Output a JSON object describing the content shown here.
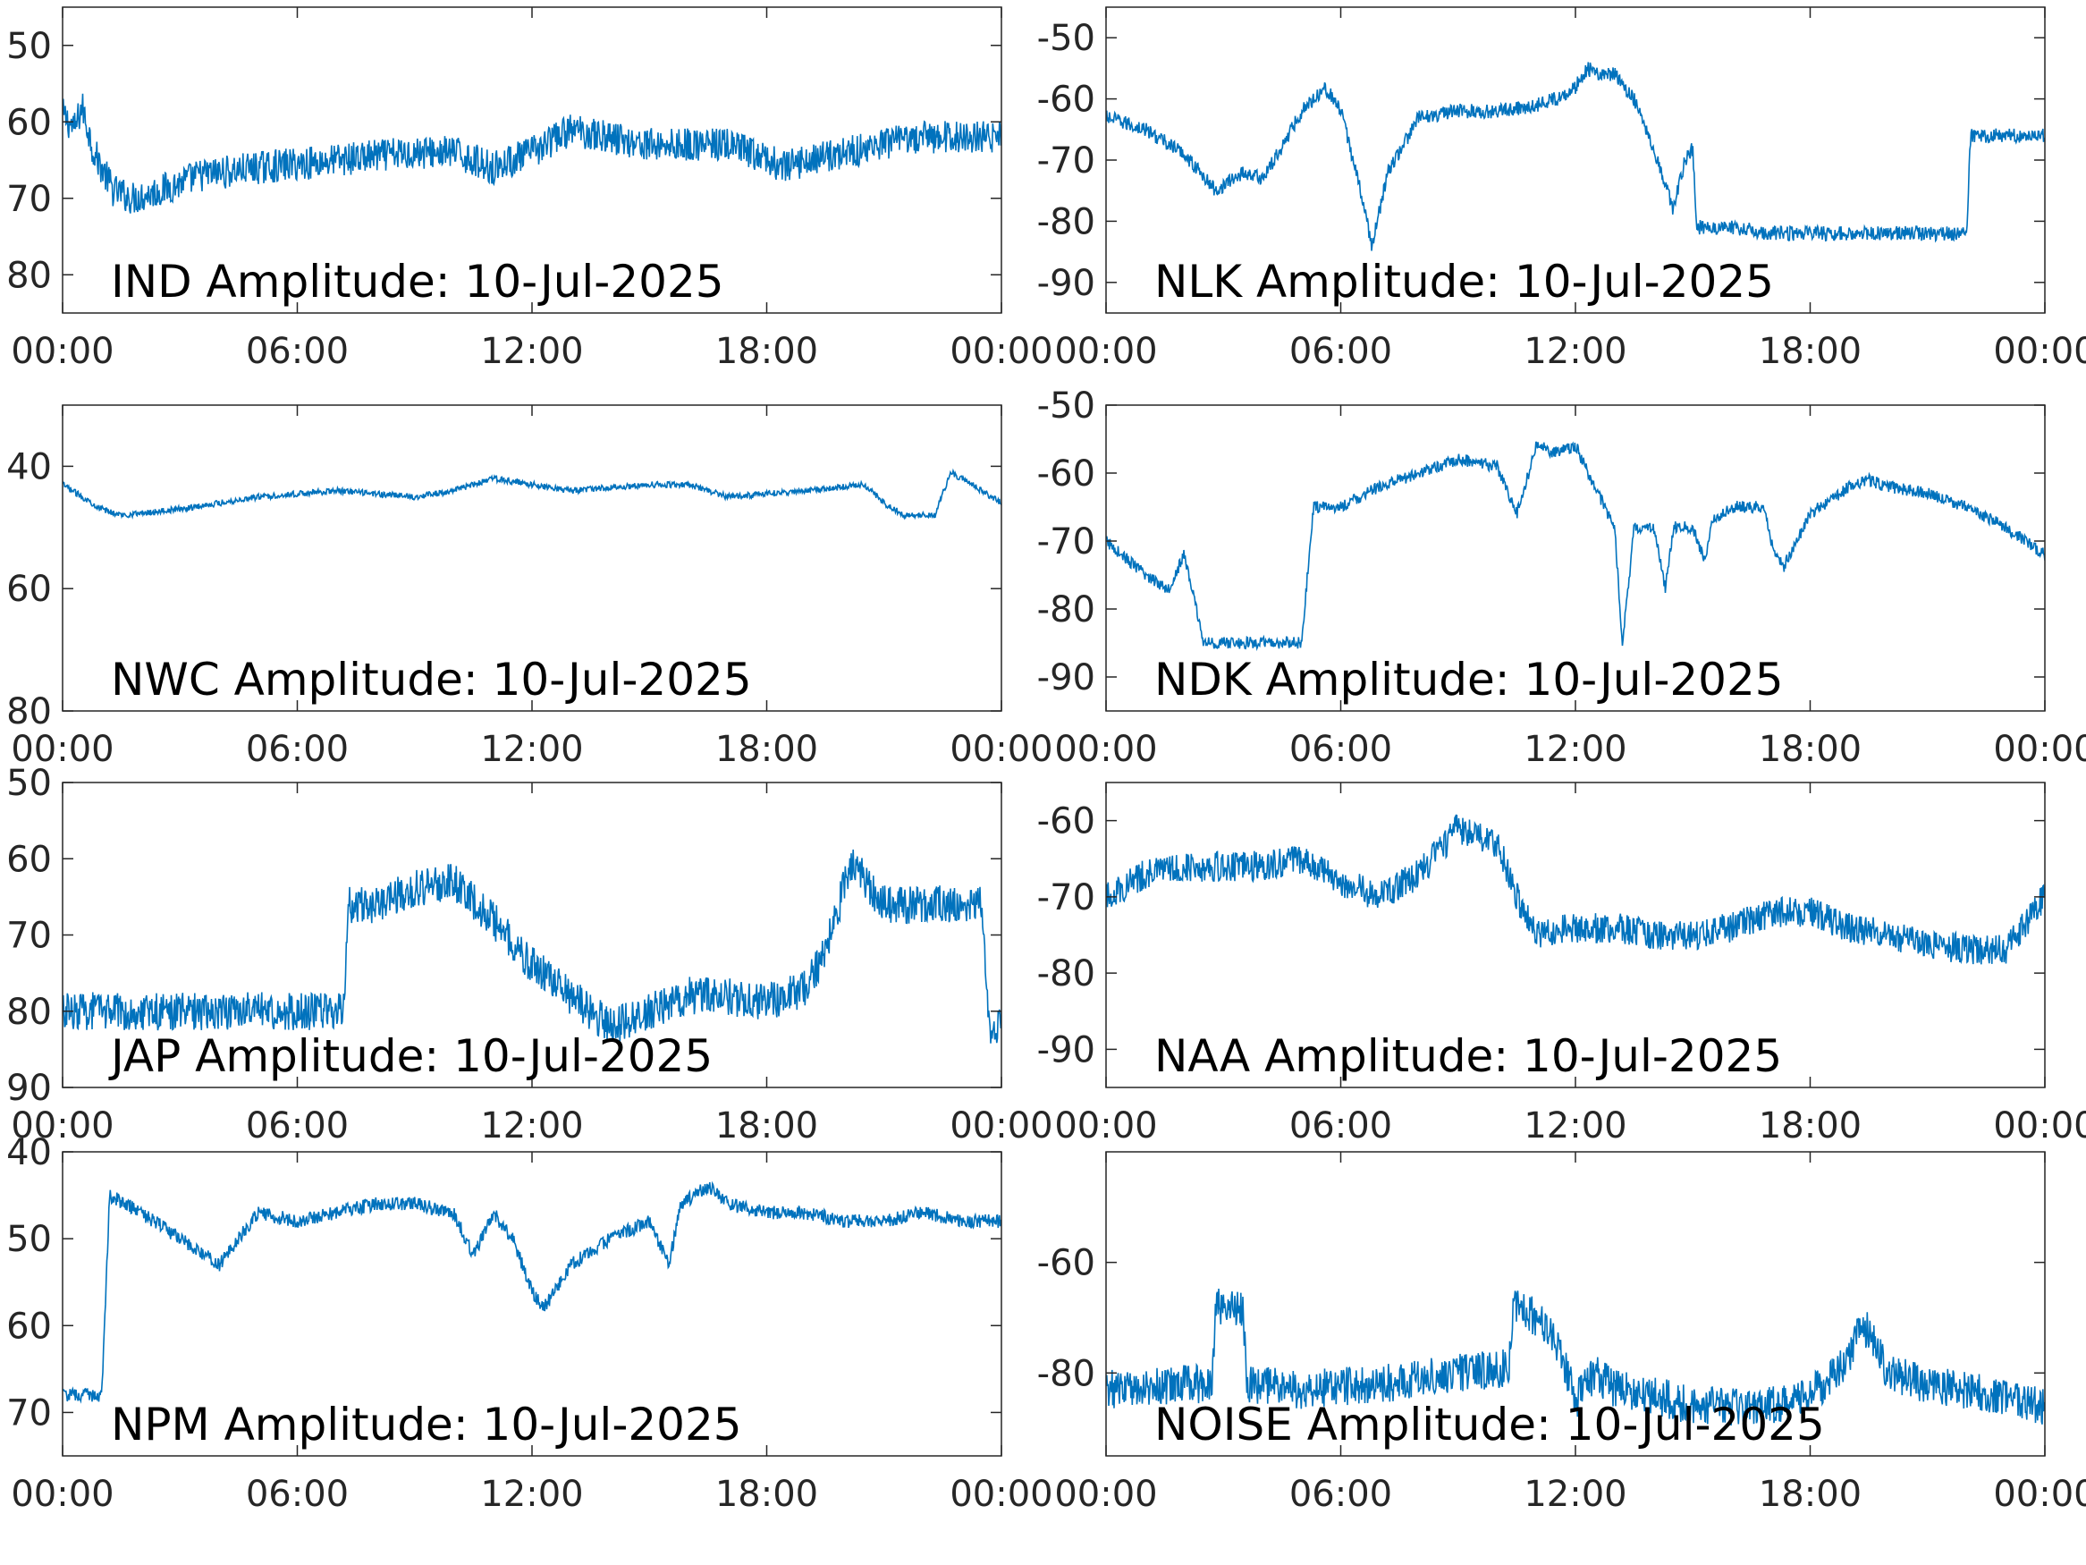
{
  "colors": {
    "trace": "#0072BD",
    "axes": "#262626",
    "background": "#ffffff"
  },
  "chart_data": [
    {
      "type": "line",
      "title": "IND Amplitude: 10-Jul-2025",
      "x_ticks": [
        "00:00",
        "06:00",
        "12:00",
        "18:00",
        "00:00"
      ],
      "y_ticks": [
        "50",
        "60",
        "70",
        "80"
      ],
      "xlim_hours": [
        0,
        24
      ],
      "ylim": [
        -85,
        -45
      ],
      "grid": false,
      "noise": 2.2,
      "series": [
        {
          "x": [
            0,
            0.3,
            0.5,
            0.8,
            1.3,
            1.8,
            2.5,
            3.5,
            5,
            7,
            9,
            10,
            11,
            12,
            13,
            14,
            15,
            16,
            17,
            18,
            18.5,
            19,
            20,
            21,
            22,
            23,
            24
          ],
          "y": [
            -59,
            -61,
            -58,
            -64,
            -69,
            -70,
            -69,
            -67,
            -66,
            -65,
            -64,
            -64,
            -66,
            -64,
            -61,
            -62,
            -63,
            -63,
            -63,
            -65,
            -66,
            -65,
            -64,
            -63,
            -62,
            -62,
            -62
          ]
        }
      ]
    },
    {
      "type": "line",
      "title": "NLK Amplitude: 10-Jul-2025",
      "x_ticks": [
        "00:00",
        "06:00",
        "12:00",
        "18:00",
        "00:00"
      ],
      "y_ticks": [
        "-50",
        "-60",
        "-70",
        "-80",
        "-90"
      ],
      "xlim_hours": [
        0,
        24
      ],
      "ylim": [
        -95,
        -45
      ],
      "grid": false,
      "noise": 1.2,
      "series": [
        {
          "x": [
            0,
            1,
            2,
            2.8,
            3.5,
            4,
            4.3,
            5,
            5.6,
            6,
            6.4,
            6.8,
            7.2,
            8,
            9,
            10,
            11,
            11.5,
            12,
            12.3,
            12.6,
            13,
            13.5,
            14,
            14.5,
            14.8,
            15,
            15.1,
            16,
            17,
            18,
            19,
            20,
            21,
            22,
            22.1,
            23,
            24
          ],
          "y": [
            -63,
            -65,
            -69,
            -75,
            -72,
            -73,
            -70,
            -62,
            -58,
            -62,
            -72,
            -84,
            -72,
            -63,
            -62,
            -62,
            -61,
            -60,
            -58,
            -55,
            -56,
            -56,
            -60,
            -68,
            -78,
            -70,
            -68,
            -81,
            -81,
            -82,
            -82,
            -82,
            -82,
            -82,
            -82,
            -66,
            -66,
            -66
          ]
        }
      ]
    },
    {
      "type": "line",
      "title": "NWC Amplitude: 10-Jul-2025",
      "x_ticks": [
        "00:00",
        "06:00",
        "12:00",
        "18:00",
        "00:00"
      ],
      "y_ticks": [
        "40",
        "60",
        "80"
      ],
      "xlim_hours": [
        0,
        24
      ],
      "ylim": [
        -80,
        -30
      ],
      "grid": false,
      "noise": 0.5,
      "series": [
        {
          "x": [
            0,
            1,
            1.5,
            3,
            5,
            7,
            9,
            10,
            11,
            13,
            15,
            16,
            17,
            19,
            20.5,
            21,
            21.5,
            22.3,
            22.7,
            23.5,
            24
          ],
          "y": [
            -43,
            -47,
            -48,
            -47,
            -45,
            -44,
            -45,
            -44,
            -42,
            -44,
            -43,
            -43,
            -45,
            -44,
            -43,
            -46,
            -48,
            -48,
            -41,
            -44,
            -46
          ]
        }
      ]
    },
    {
      "type": "line",
      "title": "NDK Amplitude: 10-Jul-2025",
      "x_ticks": [
        "00:00",
        "06:00",
        "12:00",
        "18:00",
        "00:00"
      ],
      "y_ticks": [
        "-50",
        "-60",
        "-70",
        "-80",
        "-90"
      ],
      "xlim_hours": [
        0,
        24
      ],
      "ylim": [
        -95,
        -50
      ],
      "grid": false,
      "noise": 0.9,
      "series": [
        {
          "x": [
            0,
            1,
            1.6,
            2,
            2.5,
            3.2,
            4,
            4.5,
            5,
            5.3,
            6,
            7,
            8,
            9,
            10,
            10.5,
            11,
            11.5,
            12,
            12.5,
            13,
            13.2,
            13.5,
            14,
            14.3,
            14.5,
            15,
            15.3,
            15.5,
            16,
            16.8,
            17,
            17.3,
            18,
            19,
            19.5,
            20,
            21,
            22,
            23,
            24
          ],
          "y": [
            -70,
            -75,
            -77,
            -72,
            -85,
            -85,
            -85,
            -85,
            -85,
            -65,
            -65,
            -62,
            -60,
            -58,
            -59,
            -66,
            -56,
            -57,
            -56,
            -62,
            -68,
            -85,
            -68,
            -68,
            -77,
            -68,
            -68,
            -73,
            -67,
            -65,
            -65,
            -70,
            -74,
            -66,
            -62,
            -61,
            -62,
            -63,
            -65,
            -68,
            -72
          ]
        }
      ]
    },
    {
      "type": "line",
      "title": "JAP Amplitude: 10-Jul-2025",
      "x_ticks": [
        "00:00",
        "06:00",
        "12:00",
        "18:00",
        "00:00"
      ],
      "y_ticks": [
        "50",
        "60",
        "70",
        "80",
        "90"
      ],
      "xlim_hours": [
        0,
        24
      ],
      "ylim": [
        -90,
        -50
      ],
      "grid": false,
      "noise": 2.5,
      "series": [
        {
          "x": [
            0,
            1,
            3,
            5,
            7.2,
            7.3,
            8,
            9,
            10,
            11,
            12,
            13,
            14,
            15,
            16,
            17,
            18,
            19,
            19.5,
            20.2,
            20.5,
            21,
            22,
            23,
            23.5,
            23.7,
            24
          ],
          "y": [
            -80,
            -80,
            -80,
            -80,
            -80,
            -66,
            -66,
            -64,
            -63,
            -68,
            -74,
            -78,
            -82,
            -80,
            -78,
            -78,
            -79,
            -77,
            -72,
            -60,
            -63,
            -66,
            -66,
            -66,
            -66,
            -82,
            -82
          ]
        }
      ]
    },
    {
      "type": "line",
      "title": "NAA Amplitude: 10-Jul-2025",
      "x_ticks": [
        "00:00",
        "06:00",
        "12:00",
        "18:00",
        "00:00"
      ],
      "y_ticks": [
        "-60",
        "-70",
        "-80",
        "-90"
      ],
      "xlim_hours": [
        0,
        24
      ],
      "ylim": [
        -95,
        -55
      ],
      "grid": false,
      "noise": 2.0,
      "series": [
        {
          "x": [
            0,
            1,
            2,
            3,
            4,
            5,
            6,
            7,
            8,
            9,
            10,
            10.5,
            11,
            12,
            13,
            14,
            15,
            16,
            17,
            18,
            19,
            20,
            21,
            22,
            23,
            24
          ],
          "y": [
            -70,
            -67,
            -66,
            -66,
            -66,
            -65,
            -68,
            -70,
            -67,
            -61,
            -63,
            -70,
            -75,
            -74,
            -74,
            -75,
            -75,
            -74,
            -72,
            -72,
            -74,
            -75,
            -76,
            -77,
            -77,
            -70
          ]
        }
      ]
    },
    {
      "type": "line",
      "title": "NPM Amplitude: 10-Jul-2025",
      "x_ticks": [
        "00:00",
        "06:00",
        "12:00",
        "18:00",
        "00:00"
      ],
      "y_ticks": [
        "40",
        "50",
        "60",
        "70"
      ],
      "xlim_hours": [
        0,
        24
      ],
      "ylim": [
        -75,
        -40
      ],
      "grid": false,
      "noise": 0.8,
      "series": [
        {
          "x": [
            0,
            1,
            1.2,
            2,
            3,
            4,
            5,
            6,
            7,
            8,
            9,
            10,
            10.5,
            11,
            11.5,
            12,
            12.3,
            13,
            14,
            15,
            15.5,
            15.8,
            16.5,
            17,
            18,
            19,
            20,
            21,
            22,
            23,
            24
          ],
          "y": [
            -68,
            -68,
            -45,
            -47,
            -50,
            -53,
            -47,
            -48,
            -47,
            -46,
            -46,
            -47,
            -52,
            -47,
            -50,
            -56,
            -58,
            -53,
            -50,
            -48,
            -53,
            -46,
            -44,
            -46,
            -47,
            -47,
            -48,
            -48,
            -47,
            -48,
            -48
          ]
        }
      ]
    },
    {
      "type": "line",
      "title": "NOISE Amplitude: 10-Jul-2025",
      "x_ticks": [
        "00:00",
        "06:00",
        "12:00",
        "18:00",
        "00:00"
      ],
      "y_ticks": [
        "-60",
        "-80"
      ],
      "xlim_hours": [
        0,
        24
      ],
      "ylim": [
        -95,
        -40
      ],
      "grid": false,
      "noise": 3.5,
      "series": [
        {
          "x": [
            0,
            2,
            2.7,
            2.8,
            3.5,
            3.6,
            5,
            7,
            9,
            10.3,
            10.4,
            11,
            11.5,
            12,
            12.5,
            13,
            14,
            15,
            16,
            17,
            18,
            19,
            19.2,
            19.5,
            20,
            21,
            22,
            23,
            24
          ],
          "y": [
            -83,
            -82,
            -82,
            -68,
            -68,
            -82,
            -83,
            -82,
            -80,
            -79,
            -68,
            -70,
            -74,
            -85,
            -80,
            -83,
            -84,
            -86,
            -86,
            -86,
            -84,
            -78,
            -72,
            -72,
            -80,
            -82,
            -83,
            -85,
            -86
          ]
        }
      ]
    }
  ]
}
